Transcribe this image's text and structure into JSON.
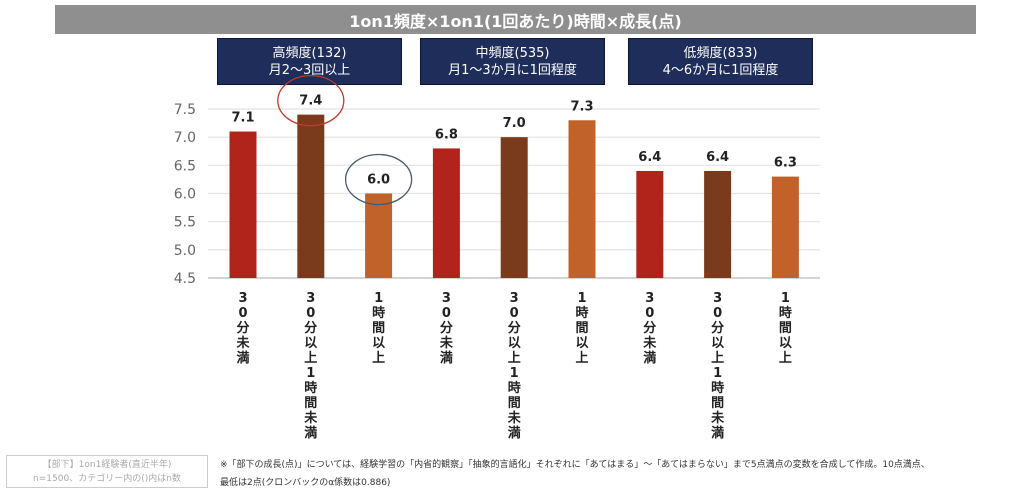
{
  "chart_data": {
    "type": "bar",
    "title": "1on1頻度×1on1(1回あたり)時間×成長(点)",
    "groups": [
      {
        "label": "高頻度(132)",
        "sublabel": "月2～3回以上"
      },
      {
        "label": "中頻度(535)",
        "sublabel": "月1～3か月に1回程度"
      },
      {
        "label": "低頻度(833)",
        "sublabel": "4～6か月に1回程度"
      }
    ],
    "categories": [
      "30分未満",
      "30分以上1時間未満",
      "1時間以上",
      "30分未満",
      "30分以上1時間未満",
      "1時間以上",
      "30分未満",
      "30分以上1時間未満",
      "1時間以上"
    ],
    "values": [
      7.1,
      7.4,
      6.0,
      6.8,
      7.0,
      7.3,
      6.4,
      6.4,
      6.3
    ],
    "value_labels": [
      "7.1",
      "7.4",
      "6.0",
      "6.8",
      "7.0",
      "7.3",
      "6.4",
      "6.4",
      "6.3"
    ],
    "ylim": [
      4.5,
      7.5
    ],
    "yticks": [
      "7.5",
      "7.0",
      "6.5",
      "6.0",
      "5.5",
      "5.0",
      "4.5"
    ],
    "grid": true,
    "colors": {
      "30分未満": "#b0241c",
      "30分以上1時間未満": "#7a3b1c",
      "1時間以上": "#c0622a"
    },
    "highlights": [
      {
        "index": 1,
        "color": "#c0392b"
      },
      {
        "index": 2,
        "color": "#4a5a70"
      }
    ]
  },
  "footer": {
    "sample_line1": "【部下】1on1経験者(直近半年)",
    "sample_line2": "n=1500、カテゴリー内の()内はn数",
    "note_line1": "※「部下の成長(点)」については、経験学習の「内省的観察」「抽象的言語化」それぞれに「あてはまる」～「あてはまらない」まで5点満点の変数を合成して作成。10点満点、",
    "note_line2": "最低は2点(クロンバックのα係数は0.886)"
  }
}
